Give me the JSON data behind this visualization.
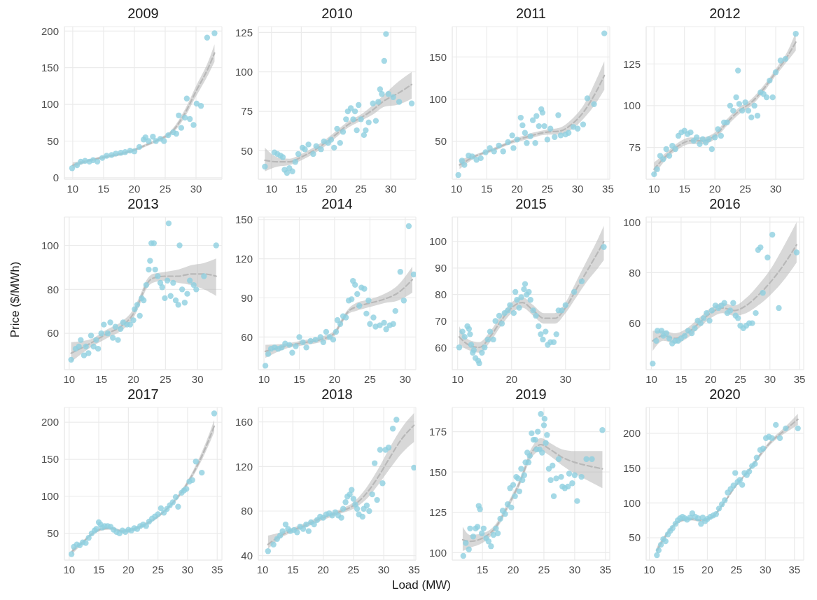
{
  "chart_data": [
    {
      "type": "scatter",
      "title": "2009",
      "xlim": [
        8.65,
        34.2
      ],
      "xticks": [
        10,
        15,
        20,
        25,
        30
      ],
      "ylim": [
        -2,
        206
      ],
      "yticks": [
        0,
        50,
        100,
        150,
        200
      ],
      "grid": true,
      "marker": "circle",
      "series": [
        {
          "type": "scatter",
          "color": "#8fcfe0",
          "x": [
            9.9,
            10.7,
            11.3,
            12,
            12.7,
            13.3,
            14,
            14.8,
            15.5,
            16.3,
            17,
            17.8,
            18.5,
            19.3,
            20,
            20.8,
            21.5,
            21.8,
            22.3,
            23,
            23.5,
            24.2,
            24.8,
            25.5,
            26.3,
            26.8,
            27.2,
            27.6,
            28.2,
            28.5,
            29,
            29.6,
            30.1,
            30.8,
            31.8,
            33
          ],
          "values": [
            13,
            17,
            22,
            23,
            22,
            24,
            22,
            27,
            30,
            31,
            33,
            34,
            35,
            37,
            36,
            42,
            52,
            55,
            50,
            56,
            50,
            53,
            50,
            58,
            62,
            60,
            85,
            68,
            82,
            108,
            80,
            72,
            101,
            98,
            191,
            197
          ]
        },
        {
          "type": "line",
          "color": "#b8b8b8",
          "line_style": "dashed",
          "marker": "none",
          "x": [
            10,
            12,
            15,
            18,
            20,
            22,
            24,
            26,
            28,
            30,
            32,
            33
          ],
          "values": [
            17,
            22,
            28,
            33,
            38,
            45,
            52,
            62,
            85,
            118,
            150,
            170
          ],
          "lower": [
            13,
            20,
            26,
            31,
            36,
            43,
            50,
            59,
            80,
            111,
            141,
            158
          ],
          "upper": [
            21,
            24,
            30,
            35,
            40,
            47,
            54,
            65,
            90,
            125,
            159,
            182
          ]
        }
      ]
    },
    {
      "type": "scatter",
      "title": "2010",
      "xlim": [
        7.8,
        34.2
      ],
      "xticks": [
        10,
        15,
        20,
        25,
        30
      ],
      "ylim": [
        32,
        128.7
      ],
      "yticks": [
        50,
        75,
        100,
        125
      ],
      "grid": true,
      "marker": "circle",
      "series": [
        {
          "type": "scatter",
          "color": "#8fcfe0",
          "x": [
            8.9,
            10.5,
            11,
            11.5,
            11.9,
            12.2,
            12.6,
            13,
            13.5,
            14,
            14.5,
            15.2,
            15.6,
            16.2,
            17,
            17.5,
            18.3,
            18.8,
            19.5,
            20,
            20.5,
            21,
            21.5,
            22,
            22.5,
            22.8,
            23.3,
            23.7,
            24,
            24.3,
            24.6,
            25,
            25.5,
            25.8,
            26.3,
            27,
            27.5,
            27.9,
            28.2,
            28.5,
            28.9,
            29.2,
            29.6,
            30.4,
            31.4,
            33.5
          ],
          "values": [
            40,
            49,
            48,
            47,
            46,
            38,
            36,
            39,
            37,
            43,
            48,
            52,
            51,
            54,
            48,
            53,
            51,
            56,
            55,
            57,
            52,
            64,
            55,
            62,
            70,
            75,
            77,
            70,
            75,
            63,
            79,
            70,
            60,
            63,
            68,
            80,
            69,
            81,
            89,
            86,
            107,
            124,
            86,
            84,
            81,
            80
          ]
        },
        {
          "type": "line",
          "color": "#b8b8b8",
          "line_style": "dashed",
          "marker": "none",
          "x": [
            8.9,
            11,
            13,
            15,
            17,
            19,
            21,
            23,
            25,
            27,
            29,
            31,
            33.5
          ],
          "values": [
            44,
            43,
            43,
            46,
            50,
            55,
            61,
            67,
            71,
            76,
            82,
            86,
            92
          ],
          "lower": [
            37,
            40,
            41,
            44,
            48,
            53,
            59,
            65,
            69,
            73,
            78,
            79,
            83
          ],
          "upper": [
            52,
            46,
            45,
            48,
            52,
            57,
            63,
            69,
            73,
            79,
            86,
            93,
            100
          ]
        }
      ]
    },
    {
      "type": "scatter",
      "title": "2011",
      "xlim": [
        9.3,
        35.3
      ],
      "xticks": [
        10,
        15,
        20,
        25,
        30,
        35
      ],
      "ylim": [
        5,
        186
      ],
      "yticks": [
        50,
        100,
        150
      ],
      "grid": true,
      "marker": "circle",
      "series": [
        {
          "type": "scatter",
          "color": "#8fcfe0",
          "x": [
            10.3,
            10.9,
            11.3,
            12,
            12.6,
            13.3,
            14,
            14.8,
            15.5,
            16.2,
            17,
            17.7,
            18.5,
            19.2,
            19.4,
            20,
            20.6,
            20.9,
            21.3,
            21.6,
            22.2,
            22.6,
            23,
            23.2,
            23.6,
            24,
            24.2,
            24.5,
            25,
            25.5,
            26.2,
            26.8,
            27.2,
            28,
            28.5,
            29.3,
            30,
            30.9,
            31.6,
            32.7,
            34.4
          ],
          "values": [
            10,
            27,
            22,
            33,
            32,
            28,
            30,
            37,
            42,
            38,
            45,
            38,
            49,
            57,
            42,
            52,
            78,
            69,
            60,
            48,
            56,
            75,
            48,
            80,
            68,
            88,
            84,
            68,
            52,
            65,
            55,
            81,
            57,
            58,
            60,
            67,
            65,
            70,
            101,
            94,
            178
          ]
        },
        {
          "type": "line",
          "color": "#b8b8b8",
          "line_style": "dashed",
          "marker": "none",
          "x": [
            10.5,
            13,
            16,
            19,
            22,
            25,
            27,
            29,
            31,
            33,
            34.4
          ],
          "values": [
            22,
            32,
            40,
            49,
            56,
            61,
            62,
            70,
            85,
            108,
            128
          ],
          "lower": [
            17,
            30,
            38,
            47,
            53,
            58,
            58,
            64,
            77,
            95,
            111
          ],
          "upper": [
            28,
            34,
            42,
            51,
            59,
            64,
            66,
            76,
            93,
            122,
            145
          ]
        }
      ]
    },
    {
      "type": "scatter",
      "title": "2012",
      "xlim": [
        8.7,
        34.6
      ],
      "xticks": [
        10,
        15,
        20,
        25,
        30
      ],
      "ylim": [
        56,
        147.3
      ],
      "yticks": [
        75,
        100,
        125
      ],
      "grid": true,
      "marker": "circle",
      "series": [
        {
          "type": "scatter",
          "color": "#8fcfe0",
          "x": [
            10,
            10.5,
            11,
            11.5,
            12,
            12.5,
            13,
            13.5,
            14,
            14.5,
            15,
            15.5,
            16,
            16.5,
            17,
            17.5,
            18,
            18.5,
            19,
            19.5,
            20,
            20.5,
            21,
            21.5,
            22,
            22.5,
            23,
            23.5,
            23.8,
            24,
            24.5,
            25,
            25.5,
            26,
            26.5,
            27,
            27.5,
            28,
            28.5,
            29,
            29.5,
            30,
            30.8,
            31.6,
            33.3
          ],
          "values": [
            59,
            62,
            70,
            68,
            74,
            70,
            76,
            74,
            82,
            84,
            85,
            83,
            84,
            79,
            81,
            77,
            80,
            78,
            80,
            74,
            81,
            86,
            82,
            90,
            90,
            100,
            97,
            105,
            121,
            101,
            97,
            102,
            97,
            93,
            100,
            94,
            108,
            107,
            105,
            115,
            105,
            120,
            127,
            128,
            143
          ]
        },
        {
          "type": "line",
          "color": "#b8b8b8",
          "line_style": "dashed",
          "marker": "none",
          "x": [
            10,
            12,
            14,
            16,
            18,
            20,
            22,
            24,
            26,
            28,
            30,
            32,
            33.3
          ],
          "values": [
            62,
            70,
            76,
            79,
            79,
            82,
            90,
            97,
            102,
            110,
            120,
            130,
            138
          ],
          "lower": [
            58,
            68,
            74,
            77,
            77,
            80,
            88,
            95,
            100,
            108,
            118,
            127,
            133
          ],
          "upper": [
            66,
            72,
            78,
            81,
            81,
            84,
            92,
            99,
            104,
            112,
            122,
            133,
            144
          ]
        }
      ]
    },
    {
      "type": "scatter",
      "title": "2013",
      "ylabel": "Price ($/MWh)",
      "xlim": [
        9.25,
        33.8
      ],
      "xticks": [
        10,
        15,
        20,
        25,
        30
      ],
      "ylim": [
        43.5,
        112.9
      ],
      "yticks": [
        60,
        80,
        100
      ],
      "grid": true,
      "marker": "circle",
      "series": [
        {
          "type": "scatter",
          "color": "#8fcfe0",
          "x": [
            10.3,
            11,
            11.5,
            11.8,
            12.3,
            12.6,
            13,
            13.4,
            13.8,
            14.2,
            14.5,
            15,
            15.4,
            16,
            16.4,
            16.8,
            17.2,
            17.6,
            18,
            18.4,
            19,
            19.5,
            20,
            20.2,
            20.6,
            21,
            21.3,
            21.6,
            22,
            22.4,
            22.6,
            22.8,
            23.2,
            23.4,
            23.8,
            24.2,
            24.5,
            24.9,
            25.3,
            25.5,
            25.8,
            26.2,
            26.6,
            27,
            27.2,
            27.6,
            28,
            28.4,
            28.8,
            29.4,
            29.8,
            31,
            32.9
          ],
          "values": [
            48,
            53,
            54,
            57,
            50,
            54,
            51,
            59,
            54,
            57,
            53,
            60,
            64,
            60,
            65,
            58,
            63,
            57,
            62,
            65,
            64,
            64,
            66,
            71,
            73,
            68,
            76,
            75,
            82,
            89,
            93,
            101,
            101,
            89,
            86,
            83,
            81,
            76,
            84,
            110,
            77,
            83,
            75,
            73,
            100,
            80,
            74,
            78,
            84,
            82,
            80,
            86,
            100
          ]
        },
        {
          "type": "line",
          "color": "#b8b8b8",
          "line_style": "dashed",
          "marker": "none",
          "x": [
            10.3,
            13,
            16,
            18,
            20,
            21,
            22,
            23,
            25,
            27,
            29,
            31,
            32.9
          ],
          "values": [
            51,
            55,
            60,
            63,
            69,
            75,
            82,
            85,
            86,
            86,
            87,
            87,
            86
          ],
          "lower": [
            47,
            53,
            58,
            61,
            67,
            73,
            80,
            83,
            84,
            83,
            82,
            80,
            77
          ],
          "upper": [
            56,
            57,
            62,
            65,
            71,
            77,
            84,
            87,
            88,
            89,
            91,
            92,
            94
          ]
        }
      ]
    },
    {
      "type": "scatter",
      "title": "2014",
      "xlim": [
        9.2,
        31.5
      ],
      "xticks": [
        10,
        15,
        20,
        25,
        30
      ],
      "ylim": [
        35,
        152
      ],
      "yticks": [
        60,
        90,
        120,
        150
      ],
      "grid": true,
      "marker": "circle",
      "series": [
        {
          "type": "scatter",
          "color": "#8fcfe0",
          "x": [
            10.2,
            10.6,
            11,
            11.5,
            12,
            12.5,
            13,
            13.6,
            14,
            14.5,
            15,
            15.5,
            16,
            16.6,
            17.3,
            18,
            18.4,
            18.8,
            19.3,
            19.8,
            20.2,
            20.4,
            20.8,
            21.2,
            21.6,
            22,
            22.4,
            22.6,
            22.9,
            23.2,
            23.5,
            23.8,
            24.2,
            24.5,
            24.8,
            25,
            25.5,
            25.8,
            26.4,
            27,
            27.3,
            27.8,
            28.3,
            28.6,
            29.3,
            29.8,
            30.5,
            31.2
          ],
          "values": [
            38,
            47,
            51,
            52,
            51,
            52,
            55,
            54,
            48,
            53,
            60,
            56,
            52,
            57,
            58,
            60,
            56,
            64,
            60,
            58,
            64,
            73,
            70,
            76,
            75,
            88,
            89,
            103,
            100,
            93,
            84,
            98,
            97,
            78,
            88,
            70,
            75,
            68,
            69,
            71,
            66,
            69,
            70,
            80,
            110,
            88,
            145,
            108
          ]
        },
        {
          "type": "line",
          "color": "#b8b8b8",
          "line_style": "dashed",
          "marker": "none",
          "x": [
            10.2,
            13,
            16,
            18,
            20,
            21,
            22,
            23,
            25,
            27,
            29,
            31
          ],
          "values": [
            49,
            53,
            56,
            58,
            63,
            72,
            80,
            83,
            86,
            89,
            94,
            104
          ],
          "lower": [
            44,
            51,
            54,
            56,
            61,
            70,
            78,
            80,
            83,
            86,
            88,
            94
          ],
          "upper": [
            54,
            55,
            58,
            60,
            65,
            74,
            82,
            86,
            89,
            93,
            100,
            114
          ]
        }
      ]
    },
    {
      "type": "scatter",
      "title": "2015",
      "xlim": [
        9,
        38.2
      ],
      "xticks": [
        10,
        20,
        30
      ],
      "ylim": [
        51.6,
        109.3
      ],
      "yticks": [
        60,
        70,
        80,
        90,
        100
      ],
      "grid": true,
      "marker": "circle",
      "series": [
        {
          "type": "scatter",
          "color": "#8fcfe0",
          "x": [
            10.3,
            10.9,
            11.3,
            11.8,
            12.1,
            12.3,
            12.5,
            12.8,
            13,
            13.3,
            13.8,
            14,
            14.5,
            15,
            15.6,
            16,
            16.6,
            17,
            17.7,
            18.2,
            18.7,
            19.3,
            19.7,
            20.4,
            20.7,
            21,
            21.4,
            21.8,
            22.3,
            22.5,
            22.8,
            23.2,
            23.5,
            24,
            24.5,
            25,
            25.4,
            25.8,
            26.3,
            26.7,
            27.2,
            27.8,
            28.3,
            28.7,
            29.3,
            30,
            31.6,
            33,
            37.1
          ],
          "values": [
            60,
            66,
            64,
            68,
            67,
            65,
            61,
            58,
            59,
            56,
            55,
            54,
            58,
            60,
            63,
            66,
            63,
            70,
            72,
            69,
            73,
            74,
            76,
            73,
            81,
            78,
            75,
            79,
            82,
            84,
            80,
            81,
            78,
            74,
            72,
            68,
            65,
            63,
            66,
            61,
            62,
            62,
            65,
            74,
            74,
            76,
            81,
            85,
            98
          ]
        },
        {
          "type": "line",
          "color": "#b8b8b8",
          "line_style": "dashed",
          "marker": "none",
          "x": [
            10.3,
            12,
            14,
            16,
            18,
            20,
            22,
            24,
            26,
            28,
            30,
            32,
            34,
            36,
            37.1
          ],
          "values": [
            64,
            61,
            60,
            64,
            70,
            75,
            77,
            74,
            71,
            71,
            75,
            82,
            89,
            96,
            100
          ],
          "lower": [
            61,
            59,
            58,
            62,
            68,
            73,
            75,
            72,
            69,
            69,
            73,
            79,
            85,
            90,
            93
          ],
          "upper": [
            68,
            63,
            62,
            66,
            72,
            77,
            79,
            76,
            73,
            73,
            77,
            85,
            93,
            101,
            106
          ]
        }
      ]
    },
    {
      "type": "scatter",
      "title": "2016",
      "xlim": [
        9.1,
        35.7
      ],
      "xticks": [
        10,
        15,
        20,
        25,
        30,
        35
      ],
      "ylim": [
        41.6,
        102
      ],
      "yticks": [
        60,
        80,
        100
      ],
      "grid": true,
      "marker": "circle",
      "series": [
        {
          "type": "scatter",
          "color": "#8fcfe0",
          "x": [
            10.2,
            10.8,
            11,
            11.7,
            12,
            12.5,
            13,
            13.5,
            14,
            14.5,
            15,
            15.6,
            16.2,
            16.8,
            17.3,
            17.8,
            18.3,
            18.8,
            19.3,
            19.8,
            20.2,
            20.8,
            21.3,
            21.8,
            22.3,
            22.8,
            23.3,
            23.8,
            24.2,
            24.6,
            25,
            25.5,
            26,
            26.5,
            27,
            27.6,
            28,
            28.4,
            28.8,
            29.6,
            30.4,
            31.5,
            34.5
          ],
          "values": [
            44,
            53,
            57,
            57,
            55,
            56,
            54,
            52,
            53,
            53,
            54,
            55,
            57,
            56,
            58,
            61,
            60,
            62,
            64,
            61,
            65,
            67,
            66,
            67,
            68,
            64,
            65,
            68,
            63,
            62,
            59,
            58,
            59,
            60,
            60,
            64,
            89,
            90,
            72,
            86,
            95,
            66,
            88
          ]
        },
        {
          "type": "line",
          "color": "#b8b8b8",
          "line_style": "dashed",
          "marker": "none",
          "x": [
            10.2,
            12,
            14,
            16,
            18,
            20,
            22,
            24,
            26,
            28,
            30,
            32,
            34.5
          ],
          "values": [
            53,
            55,
            54,
            56,
            60,
            64,
            66,
            65,
            67,
            71,
            76,
            82,
            91
          ],
          "lower": [
            49,
            53,
            52,
            54,
            58,
            62,
            64,
            63,
            64,
            67,
            71,
            76,
            84
          ],
          "upper": [
            57,
            57,
            56,
            58,
            62,
            66,
            68,
            67,
            70,
            75,
            81,
            89,
            100
          ]
        }
      ]
    },
    {
      "type": "scatter",
      "title": "2017",
      "xlim": [
        9.2,
        35.8
      ],
      "xticks": [
        10,
        15,
        20,
        25,
        30,
        35
      ],
      "ylim": [
        14,
        220
      ],
      "yticks": [
        50,
        100,
        150,
        200
      ],
      "grid": true,
      "marker": "circle",
      "series": [
        {
          "type": "scatter",
          "color": "#8fcfe0",
          "x": [
            10.4,
            10.8,
            11.3,
            11.8,
            12.3,
            12.8,
            13.3,
            13.8,
            14.3,
            14.6,
            15,
            15.3,
            15.6,
            16,
            16.5,
            17,
            17.5,
            18,
            18.5,
            19,
            19.5,
            20,
            20.5,
            21,
            21.5,
            22,
            22.5,
            23,
            23.5,
            24,
            24.5,
            25,
            25.5,
            26,
            26.5,
            27,
            27.5,
            28,
            28.4,
            29,
            29.4,
            29.8,
            30.3,
            30.8,
            31.4,
            32.4,
            34.5
          ],
          "values": [
            22,
            32,
            35,
            34,
            38,
            37,
            44,
            50,
            54,
            56,
            65,
            62,
            58,
            60,
            60,
            59,
            55,
            52,
            50,
            54,
            52,
            55,
            54,
            57,
            56,
            60,
            62,
            60,
            66,
            70,
            73,
            76,
            84,
            78,
            83,
            88,
            92,
            99,
            86,
            105,
            108,
            110,
            120,
            122,
            147,
            132,
            212
          ]
        },
        {
          "type": "line",
          "color": "#b8b8b8",
          "line_style": "dashed",
          "marker": "none",
          "x": [
            10.5,
            12,
            14,
            15.5,
            17,
            19,
            21,
            23,
            25,
            27,
            29,
            31,
            33,
            34.5
          ],
          "values": [
            26,
            36,
            50,
            56,
            57,
            53,
            56,
            63,
            73,
            87,
            106,
            132,
            165,
            195
          ],
          "lower": [
            22,
            34,
            48,
            54,
            55,
            51,
            54,
            61,
            71,
            85,
            103,
            128,
            159,
            187
          ],
          "upper": [
            30,
            38,
            52,
            58,
            59,
            55,
            58,
            65,
            75,
            89,
            109,
            136,
            171,
            203
          ]
        }
      ]
    },
    {
      "type": "scatter",
      "title": "2018",
      "xlabel": "Load (MW)",
      "xlim": [
        9.3,
        35.3
      ],
      "xticks": [
        10,
        15,
        20,
        25,
        30,
        35
      ],
      "ylim": [
        36,
        173
      ],
      "yticks": [
        40,
        80,
        120,
        160
      ],
      "grid": true,
      "marker": "circle",
      "series": [
        {
          "type": "scatter",
          "color": "#8fcfe0",
          "x": [
            10.9,
            11.8,
            12.4,
            12.9,
            13.3,
            13.8,
            14.2,
            14.6,
            15.2,
            15.7,
            16.2,
            16.7,
            17.2,
            17.6,
            18,
            18.5,
            19,
            19.5,
            20,
            20.5,
            21,
            21.5,
            22,
            22.5,
            23,
            23.3,
            23.7,
            24,
            24.4,
            24.7,
            25,
            25.3,
            25.6,
            25.9,
            26.5,
            26.7,
            27.2,
            27.6,
            28.1,
            28.5,
            28.9,
            29.4,
            29.8,
            30.3,
            30.8,
            31.5,
            32.1,
            35
          ],
          "values": [
            44,
            50,
            55,
            58,
            62,
            68,
            64,
            62,
            63,
            61,
            66,
            64,
            68,
            62,
            70,
            68,
            72,
            75,
            74,
            77,
            78,
            76,
            79,
            76,
            74,
            82,
            88,
            93,
            95,
            99,
            91,
            86,
            82,
            77,
            75,
            82,
            85,
            80,
            95,
            123,
            90,
            135,
            105,
            135,
            137,
            154,
            162,
            119
          ]
        },
        {
          "type": "line",
          "color": "#b8b8b8",
          "line_style": "dashed",
          "marker": "none",
          "x": [
            10.9,
            13,
            15,
            17,
            19,
            21,
            23,
            25,
            27,
            29,
            31,
            33,
            35
          ],
          "values": [
            50,
            58,
            63,
            67,
            72,
            76,
            80,
            85,
            95,
            110,
            128,
            145,
            157
          ],
          "lower": [
            46,
            56,
            61,
            65,
            70,
            74,
            78,
            82,
            90,
            103,
            118,
            132,
            142
          ],
          "upper": [
            58,
            61,
            65,
            69,
            74,
            78,
            82,
            88,
            100,
            117,
            137,
            155,
            168
          ]
        }
      ]
    },
    {
      "type": "scatter",
      "title": "2019",
      "xlim": [
        10.1,
        35.7
      ],
      "xticks": [
        15,
        20,
        25,
        30,
        35
      ],
      "ylim": [
        95.4,
        190
      ],
      "yticks": [
        100,
        125,
        150,
        175
      ],
      "grid": true,
      "marker": "circle",
      "series": [
        {
          "type": "scatter",
          "color": "#8fcfe0",
          "x": [
            11.9,
            12.3,
            12.8,
            13,
            13.5,
            13.9,
            14.2,
            14.4,
            14.6,
            14.9,
            15.2,
            15.6,
            16,
            16.4,
            16.8,
            17.2,
            17.5,
            17.9,
            18.3,
            18.7,
            19.1,
            19.5,
            19.7,
            20,
            20.3,
            20.5,
            20.8,
            21,
            21.3,
            21.5,
            21.8,
            22,
            22.3,
            22.5,
            22.7,
            23,
            23.3,
            23.6,
            23.8,
            24,
            24.3,
            24.5,
            24.7,
            25,
            25.1,
            25.3,
            25.5,
            25.8,
            26.1,
            26.4,
            26.6,
            27,
            27.4,
            27.8,
            28,
            28.4,
            28.9,
            29.1,
            29.6,
            30,
            30.4,
            31.1,
            31.9,
            32.8,
            34.5
          ],
          "values": [
            98,
            106,
            102,
            115,
            110,
            115,
            116,
            129,
            127,
            112,
            115,
            109,
            107,
            104,
            111,
            115,
            112,
            121,
            126,
            124,
            130,
            140,
            128,
            142,
            135,
            147,
            146,
            138,
            152,
            145,
            148,
            156,
            162,
            156,
            160,
            174,
            170,
            170,
            164,
            175,
            164,
            186,
            162,
            179,
            183,
            168,
            173,
            152,
            145,
            154,
            135,
            146,
            158,
            147,
            141,
            140,
            141,
            149,
            143,
            148,
            132,
            147,
            158,
            158,
            176
          ]
        },
        {
          "type": "line",
          "color": "#b8b8b8",
          "line_style": "dashed",
          "marker": "none",
          "x": [
            11.8,
            13,
            15,
            17,
            19,
            21,
            23,
            24.5,
            26,
            28,
            30,
            32,
            34.5
          ],
          "values": [
            108,
            107,
            109,
            115,
            128,
            143,
            162,
            167,
            164,
            159,
            156,
            154,
            152
          ],
          "lower": [
            101,
            103,
            106,
            113,
            126,
            141,
            159,
            163,
            160,
            154,
            149,
            145,
            140
          ],
          "upper": [
            116,
            111,
            112,
            117,
            130,
            145,
            165,
            171,
            168,
            164,
            163,
            163,
            163
          ]
        }
      ]
    },
    {
      "type": "scatter",
      "title": "2020",
      "xlim": [
        9.45,
        36.6
      ],
      "xticks": [
        10,
        15,
        20,
        25,
        30,
        35
      ],
      "ylim": [
        18,
        237
      ],
      "yticks": [
        50,
        100,
        150,
        200
      ],
      "grid": true,
      "marker": "circle",
      "series": [
        {
          "type": "scatter",
          "color": "#8fcfe0",
          "x": [
            11.3,
            11.6,
            12,
            12.4,
            12.8,
            13.2,
            13.6,
            14,
            14.5,
            14.9,
            15.3,
            15.7,
            16.1,
            16.5,
            17,
            17.4,
            17.9,
            18.4,
            18.9,
            19.2,
            19.6,
            20,
            20.5,
            21,
            21.5,
            22,
            22.5,
            23,
            23.5,
            24,
            24.5,
            24.8,
            25.2,
            25.6,
            26,
            26.4,
            26.8,
            27.2,
            27.7,
            28.2,
            28.5,
            29.1,
            29.6,
            30.1,
            30.6,
            31.1,
            31.8,
            32.5,
            33.5,
            35.6
          ],
          "values": [
            25,
            32,
            40,
            48,
            45,
            55,
            60,
            64,
            70,
            75,
            78,
            80,
            78,
            76,
            79,
            85,
            80,
            78,
            70,
            79,
            74,
            77,
            80,
            82,
            84,
            92,
            98,
            104,
            115,
            120,
            125,
            143,
            130,
            133,
            126,
            143,
            140,
            145,
            153,
            156,
            165,
            176,
            178,
            193,
            195,
            193,
            212,
            193,
            207,
            207
          ]
        },
        {
          "type": "line",
          "color": "#b8b8b8",
          "line_style": "dashed",
          "marker": "none",
          "x": [
            11.3,
            13,
            15,
            17,
            19,
            21,
            23,
            25,
            27,
            29,
            31,
            33,
            35.6
          ],
          "values": [
            32,
            55,
            73,
            77,
            75,
            81,
            102,
            126,
            145,
            168,
            188,
            202,
            220
          ],
          "lower": [
            27,
            52,
            71,
            75,
            73,
            79,
            100,
            124,
            143,
            165,
            185,
            198,
            212
          ],
          "upper": [
            37,
            58,
            75,
            79,
            77,
            83,
            104,
            128,
            147,
            171,
            191,
            206,
            228
          ]
        }
      ]
    }
  ]
}
